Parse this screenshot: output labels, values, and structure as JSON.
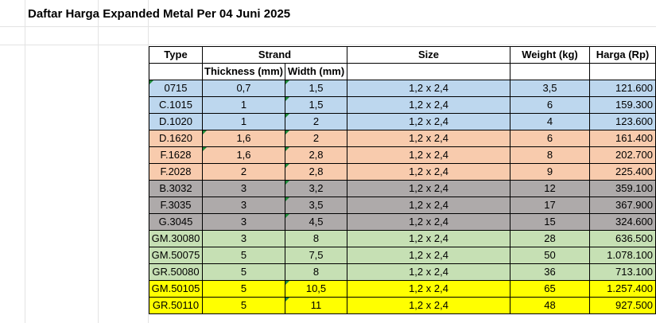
{
  "sheet": {
    "title": "Daftar Harga Expanded Metal Per 04 Juni 2025"
  },
  "headers": {
    "type": "Type",
    "strand": "Strand",
    "thickness": "Thickness (mm)",
    "width": "Width (mm)",
    "size": "Size",
    "weight": "Weight (kg)",
    "harga": "Harga (Rp)"
  },
  "rows": [
    {
      "type": "0715",
      "thickness": "0,7",
      "width": "1,5",
      "size": "1,2 x 2,4",
      "weight": "3,5",
      "harga": "121.600",
      "color": "blue"
    },
    {
      "type": "C.1015",
      "thickness": "1",
      "width": "1,5",
      "size": "1,2 x 2,4",
      "weight": "6",
      "harga": "159.300",
      "color": "blue"
    },
    {
      "type": "D.1020",
      "thickness": "1",
      "width": "2",
      "size": "1,2 x 2,4",
      "weight": "4",
      "harga": "123.600",
      "color": "blue"
    },
    {
      "type": "D.1620",
      "thickness": "1,6",
      "width": "2",
      "size": "1,2 x 2,4",
      "weight": "6",
      "harga": "161.400",
      "color": "orange"
    },
    {
      "type": "F.1628",
      "thickness": "1,6",
      "width": "2,8",
      "size": "1,2 x 2,4",
      "weight": "8",
      "harga": "202.700",
      "color": "orange"
    },
    {
      "type": "F.2028",
      "thickness": "2",
      "width": "2,8",
      "size": "1,2 x 2,4",
      "weight": "9",
      "harga": "225.400",
      "color": "orange"
    },
    {
      "type": "B.3032",
      "thickness": "3",
      "width": "3,2",
      "size": "1,2 x 2,4",
      "weight": "12",
      "harga": "359.100",
      "color": "gray"
    },
    {
      "type": "F.3035",
      "thickness": "3",
      "width": "3,5",
      "size": "1,2 x 2,4",
      "weight": "17",
      "harga": "367.900",
      "color": "gray"
    },
    {
      "type": "G.3045",
      "thickness": "3",
      "width": "4,5",
      "size": "1,2 x 2,4",
      "weight": "15",
      "harga": "324.600",
      "color": "gray"
    },
    {
      "type": "GM.30080",
      "thickness": "3",
      "width": "8",
      "size": "1,2 x 2,4",
      "weight": "28",
      "harga": "636.500",
      "color": "green"
    },
    {
      "type": "GM.50075",
      "thickness": "5",
      "width": "7,5",
      "size": "1,2 x 2,4",
      "weight": "50",
      "harga": "1.078.100",
      "color": "green"
    },
    {
      "type": "GR.50080",
      "thickness": "5",
      "width": "8",
      "size": "1,2 x 2,4",
      "weight": "36",
      "harga": "713.100",
      "color": "green"
    },
    {
      "type": "GM.50105",
      "thickness": "5",
      "width": "10,5",
      "size": "1,2 x 2,4",
      "weight": "65",
      "harga": "1.257.400",
      "color": "yellow"
    },
    {
      "type": "GR.50110",
      "thickness": "5",
      "width": "11",
      "size": "1,2 x 2,4",
      "weight": "48",
      "harga": "927.500",
      "color": "yellow"
    }
  ]
}
